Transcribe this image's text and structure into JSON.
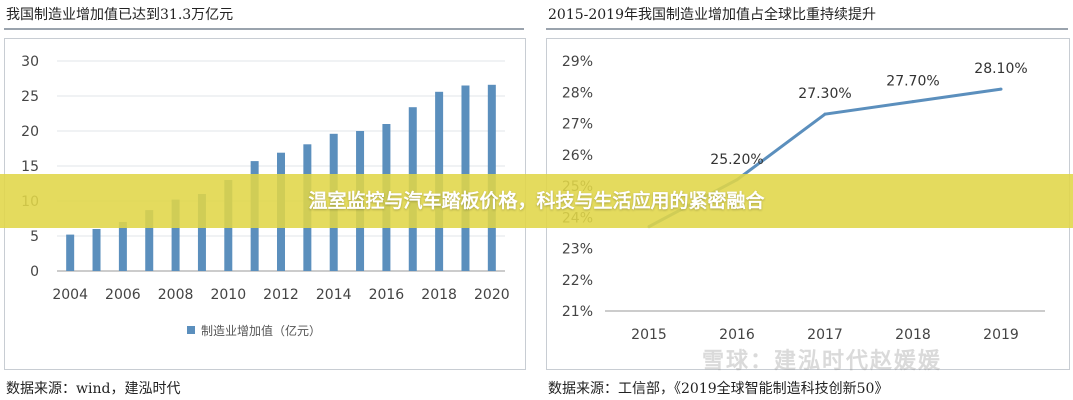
{
  "banner": {
    "headline": "温室监控与汽车踏板价格，科技与生活应用的紧密融合"
  },
  "watermark": "雪球：建泓时代赵媛媛",
  "chart_data": [
    {
      "type": "bar",
      "title": "我国制造业增加值已达到31.3万亿元",
      "categories": [
        "2004",
        "2005",
        "2006",
        "2007",
        "2008",
        "2009",
        "2010",
        "2011",
        "2012",
        "2013",
        "2014",
        "2015",
        "2016",
        "2017",
        "2018",
        "2019",
        "2020"
      ],
      "x_tick_labels": [
        "2004",
        "2006",
        "2008",
        "2010",
        "2012",
        "2014",
        "2016",
        "2018",
        "2020"
      ],
      "series": [
        {
          "name": "制造业增加值（亿元）",
          "values": [
            5.2,
            6.0,
            7.0,
            8.7,
            10.2,
            11.0,
            13.0,
            15.7,
            16.9,
            18.1,
            19.6,
            20.0,
            21.0,
            23.4,
            25.6,
            26.5,
            26.6
          ]
        }
      ],
      "ylim": [
        0,
        30
      ],
      "y_ticks": [
        0,
        5,
        10,
        15,
        20,
        25,
        30
      ],
      "grid": true,
      "legend": "bottom-center",
      "color": "#5b8fbd",
      "source": "数据来源：wind，建泓时代"
    },
    {
      "type": "line",
      "title": "2015-2019年我国制造业增加值占全球比重持续提升",
      "x": [
        "2015",
        "2016",
        "2017",
        "2018",
        "2019"
      ],
      "series": [
        {
          "values": [
            23.7,
            25.2,
            27.3,
            27.7,
            28.1
          ],
          "labels": [
            "",
            "25.20%",
            "27.30%",
            "27.70%",
            "28.10%"
          ]
        }
      ],
      "ylim": [
        21,
        29
      ],
      "y_ticks": [
        "21%",
        "22%",
        "23%",
        "24%",
        "25%",
        "26%",
        "27%",
        "28%",
        "29%"
      ],
      "grid": false,
      "color": "#5b8fbd",
      "source": "数据来源：工信部，《2019全球智能制造科技创新50》"
    }
  ]
}
